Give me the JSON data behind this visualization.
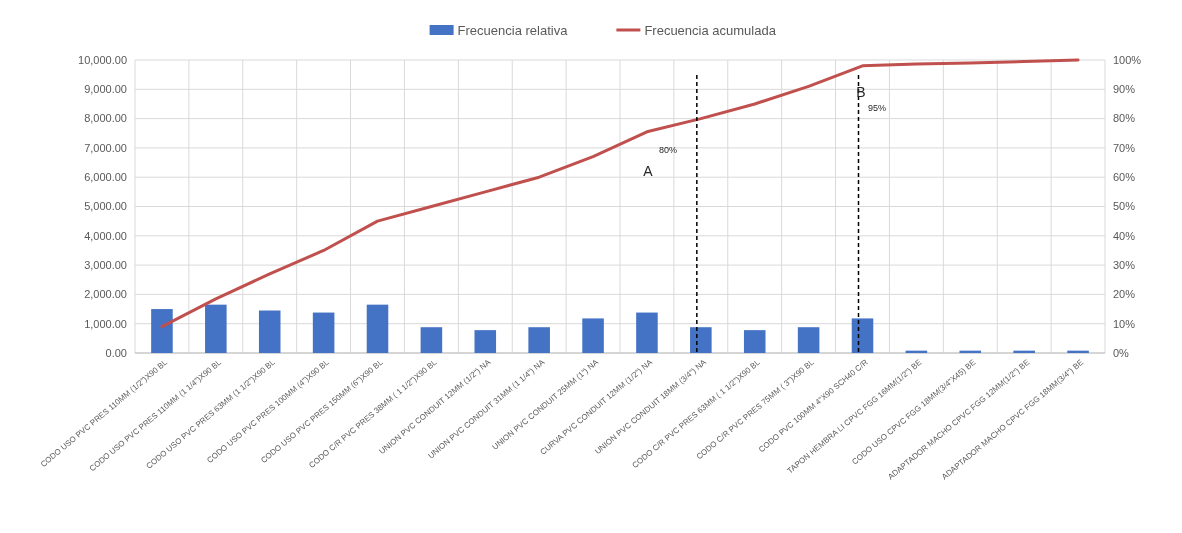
{
  "chart_data": {
    "type": "bar",
    "categories": [
      "CODO USO PVC PRES 110MM (1/2\")X90 BL",
      "CODO USO PVC PRES 110MM (1 1/4\")X90 BL",
      "CODO USO PVC PRES 63MM (1 1/2\")X90 BL",
      "CODO USO PVC PRES 100MM (4\")X90 BL",
      "CODO USO PVC PRES 150MM (6\")X90 BL",
      "CODO C/R PVC PRES 38MM ( 1 1/2\")X90 BL",
      "UNION PVC CONDUIT 12MM (1/2\") NA",
      "UNION PVC CONDUIT 31MM (1 1/4\") NA",
      "UNION PVC CONDUIT 25MM (1\") NA",
      "CURVA PVC CONDUIT 12MM (1/2\") NA",
      "UNION PVC CONDUIT 18MM (3/4\") NA",
      "CODO C/R PVC PRES 63MM ( 1 1/2\")X90 BL",
      "CODO C/R PVC PRES 75MM ( 3\")X90 BL",
      "CODO PVC 100MM 4\"X90 SCH40 C/R",
      "TAPON HEMBRA LI CPVC FGG 16MM(1/2\") BE",
      "CODO USO CPVC FGG 18MM(3/4\"X45) BE",
      "ADAPTADOR MACHO CPVC FGG 12MM(1/2\") BE",
      "ADAPTADOR MACHO CPVC FGG 18MM(3/4\") BE"
    ],
    "series": [
      {
        "name": "Frecuencia relativa",
        "color": "#4472c4",
        "values": [
          1500,
          1650,
          1450,
          1380,
          1650,
          880,
          780,
          880,
          1180,
          1380,
          880,
          780,
          880,
          1180,
          80,
          80,
          80,
          80
        ]
      },
      {
        "name": "Frecuencia acumulada",
        "type": "line",
        "axis": "y2",
        "color": "#c0504d",
        "values": [
          9,
          18.5,
          27,
          35,
          45,
          50,
          55,
          60,
          67,
          75.5,
          80,
          85,
          91,
          98,
          98.6,
          99,
          99.5,
          100
        ]
      }
    ],
    "ylim": [
      0,
      10000
    ],
    "yticks": [
      {
        "value": 0,
        "label": "0.00"
      },
      {
        "value": 1000,
        "label": "1,000.00"
      },
      {
        "value": 2000,
        "label": "2,000.00"
      },
      {
        "value": 3000,
        "label": "3,000.00"
      },
      {
        "value": 4000,
        "label": "4,000.00"
      },
      {
        "value": 5000,
        "label": "5,000.00"
      },
      {
        "value": 6000,
        "label": "6,000.00"
      },
      {
        "value": 7000,
        "label": "7,000.00"
      },
      {
        "value": 8000,
        "label": "8,000.00"
      },
      {
        "value": 9000,
        "label": "9,000.00"
      },
      {
        "value": 10000,
        "label": "10,000.00"
      }
    ],
    "y2lim": [
      0,
      100
    ],
    "y2ticks": [
      {
        "value": 0,
        "label": "0%"
      },
      {
        "value": 10,
        "label": "10%"
      },
      {
        "value": 20,
        "label": "20%"
      },
      {
        "value": 30,
        "label": "30%"
      },
      {
        "value": 40,
        "label": "40%"
      },
      {
        "value": 50,
        "label": "50%"
      },
      {
        "value": 60,
        "label": "60%"
      },
      {
        "value": 70,
        "label": "70%"
      },
      {
        "value": 80,
        "label": "80%"
      },
      {
        "value": 90,
        "label": "90%"
      },
      {
        "value": 100,
        "label": "100%"
      }
    ],
    "ref_lines": [
      {
        "axis": "x",
        "value": "UNION PVC CONDUIT 18MM (3/4\") NA",
        "color": "#000000",
        "line_style": "dashed"
      },
      {
        "axis": "x",
        "value": "CODO PVC 100MM 4\"X90 SCH40 C/R",
        "color": "#000000",
        "line_style": "dashed"
      }
    ],
    "annotations": [
      "A",
      "80%",
      "B",
      "95%"
    ],
    "grid": true,
    "legend": "top"
  }
}
